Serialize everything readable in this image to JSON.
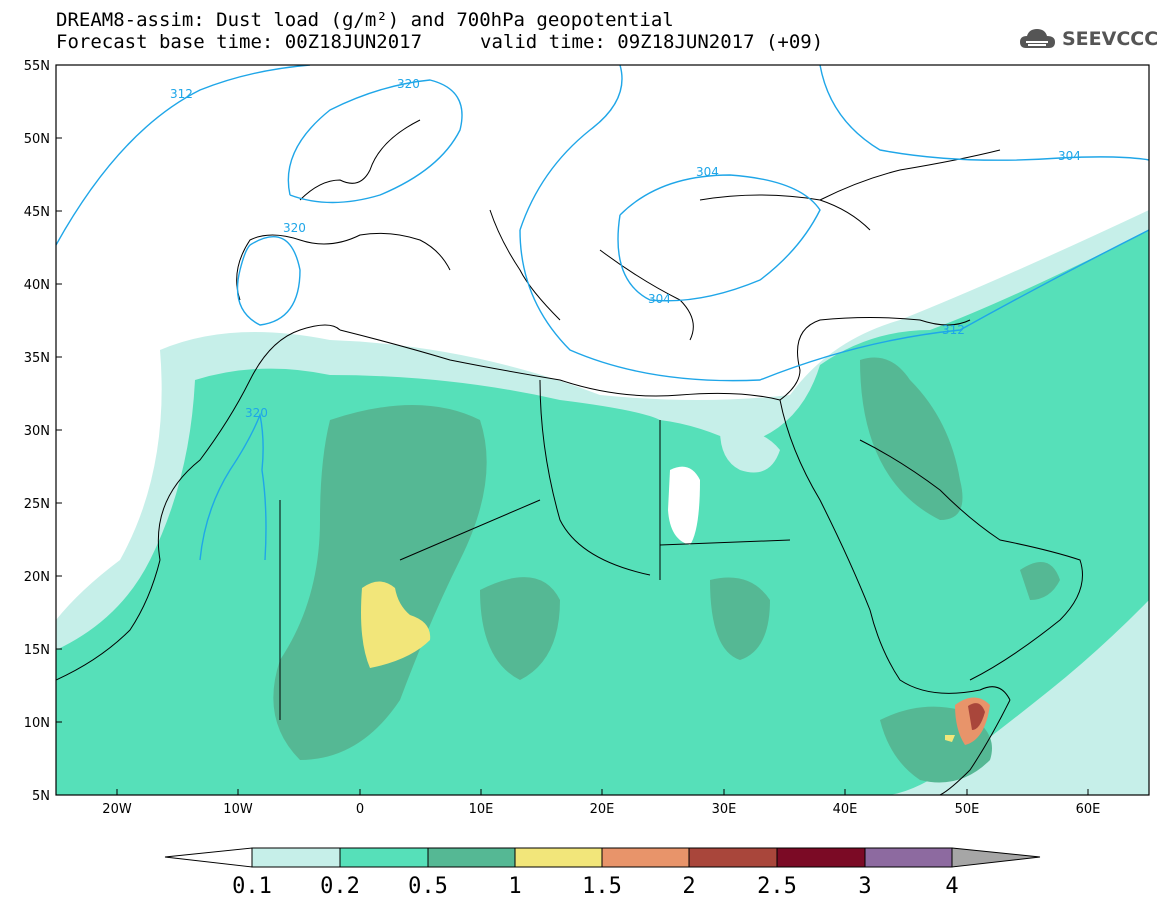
{
  "header": {
    "title_line1": "DREAM8-assim: Dust load (g/m²) and 700hPa geopotential",
    "title_line2": "Forecast base time: 00Z18JUN2017",
    "valid_time": "valid time: 09Z18JUN2017 (+09)"
  },
  "logo": {
    "text": "SEEVCCC",
    "icon": "cloud-icon"
  },
  "map": {
    "lat_labels": [
      "55N",
      "50N",
      "45N",
      "40N",
      "35N",
      "30N",
      "25N",
      "20N",
      "15N",
      "10N",
      "5N"
    ],
    "lon_labels": [
      "20W",
      "10W",
      "0",
      "10E",
      "20E",
      "30E",
      "40E",
      "50E",
      "60E"
    ],
    "contour_labels": [
      "312",
      "320",
      "320",
      "304",
      "304",
      "304",
      "312",
      "320"
    ]
  },
  "legend": {
    "thresholds": [
      "0.1",
      "0.2",
      "0.5",
      "1",
      "1.5",
      "2",
      "2.5",
      "3",
      "4"
    ],
    "colors": [
      "#c6efe9",
      "#56e0b9",
      "#55b894",
      "#f2e67a",
      "#e8946a",
      "#a9463b",
      "#7b0a25",
      "#8d6aa0",
      "#a6a6a6"
    ]
  }
}
